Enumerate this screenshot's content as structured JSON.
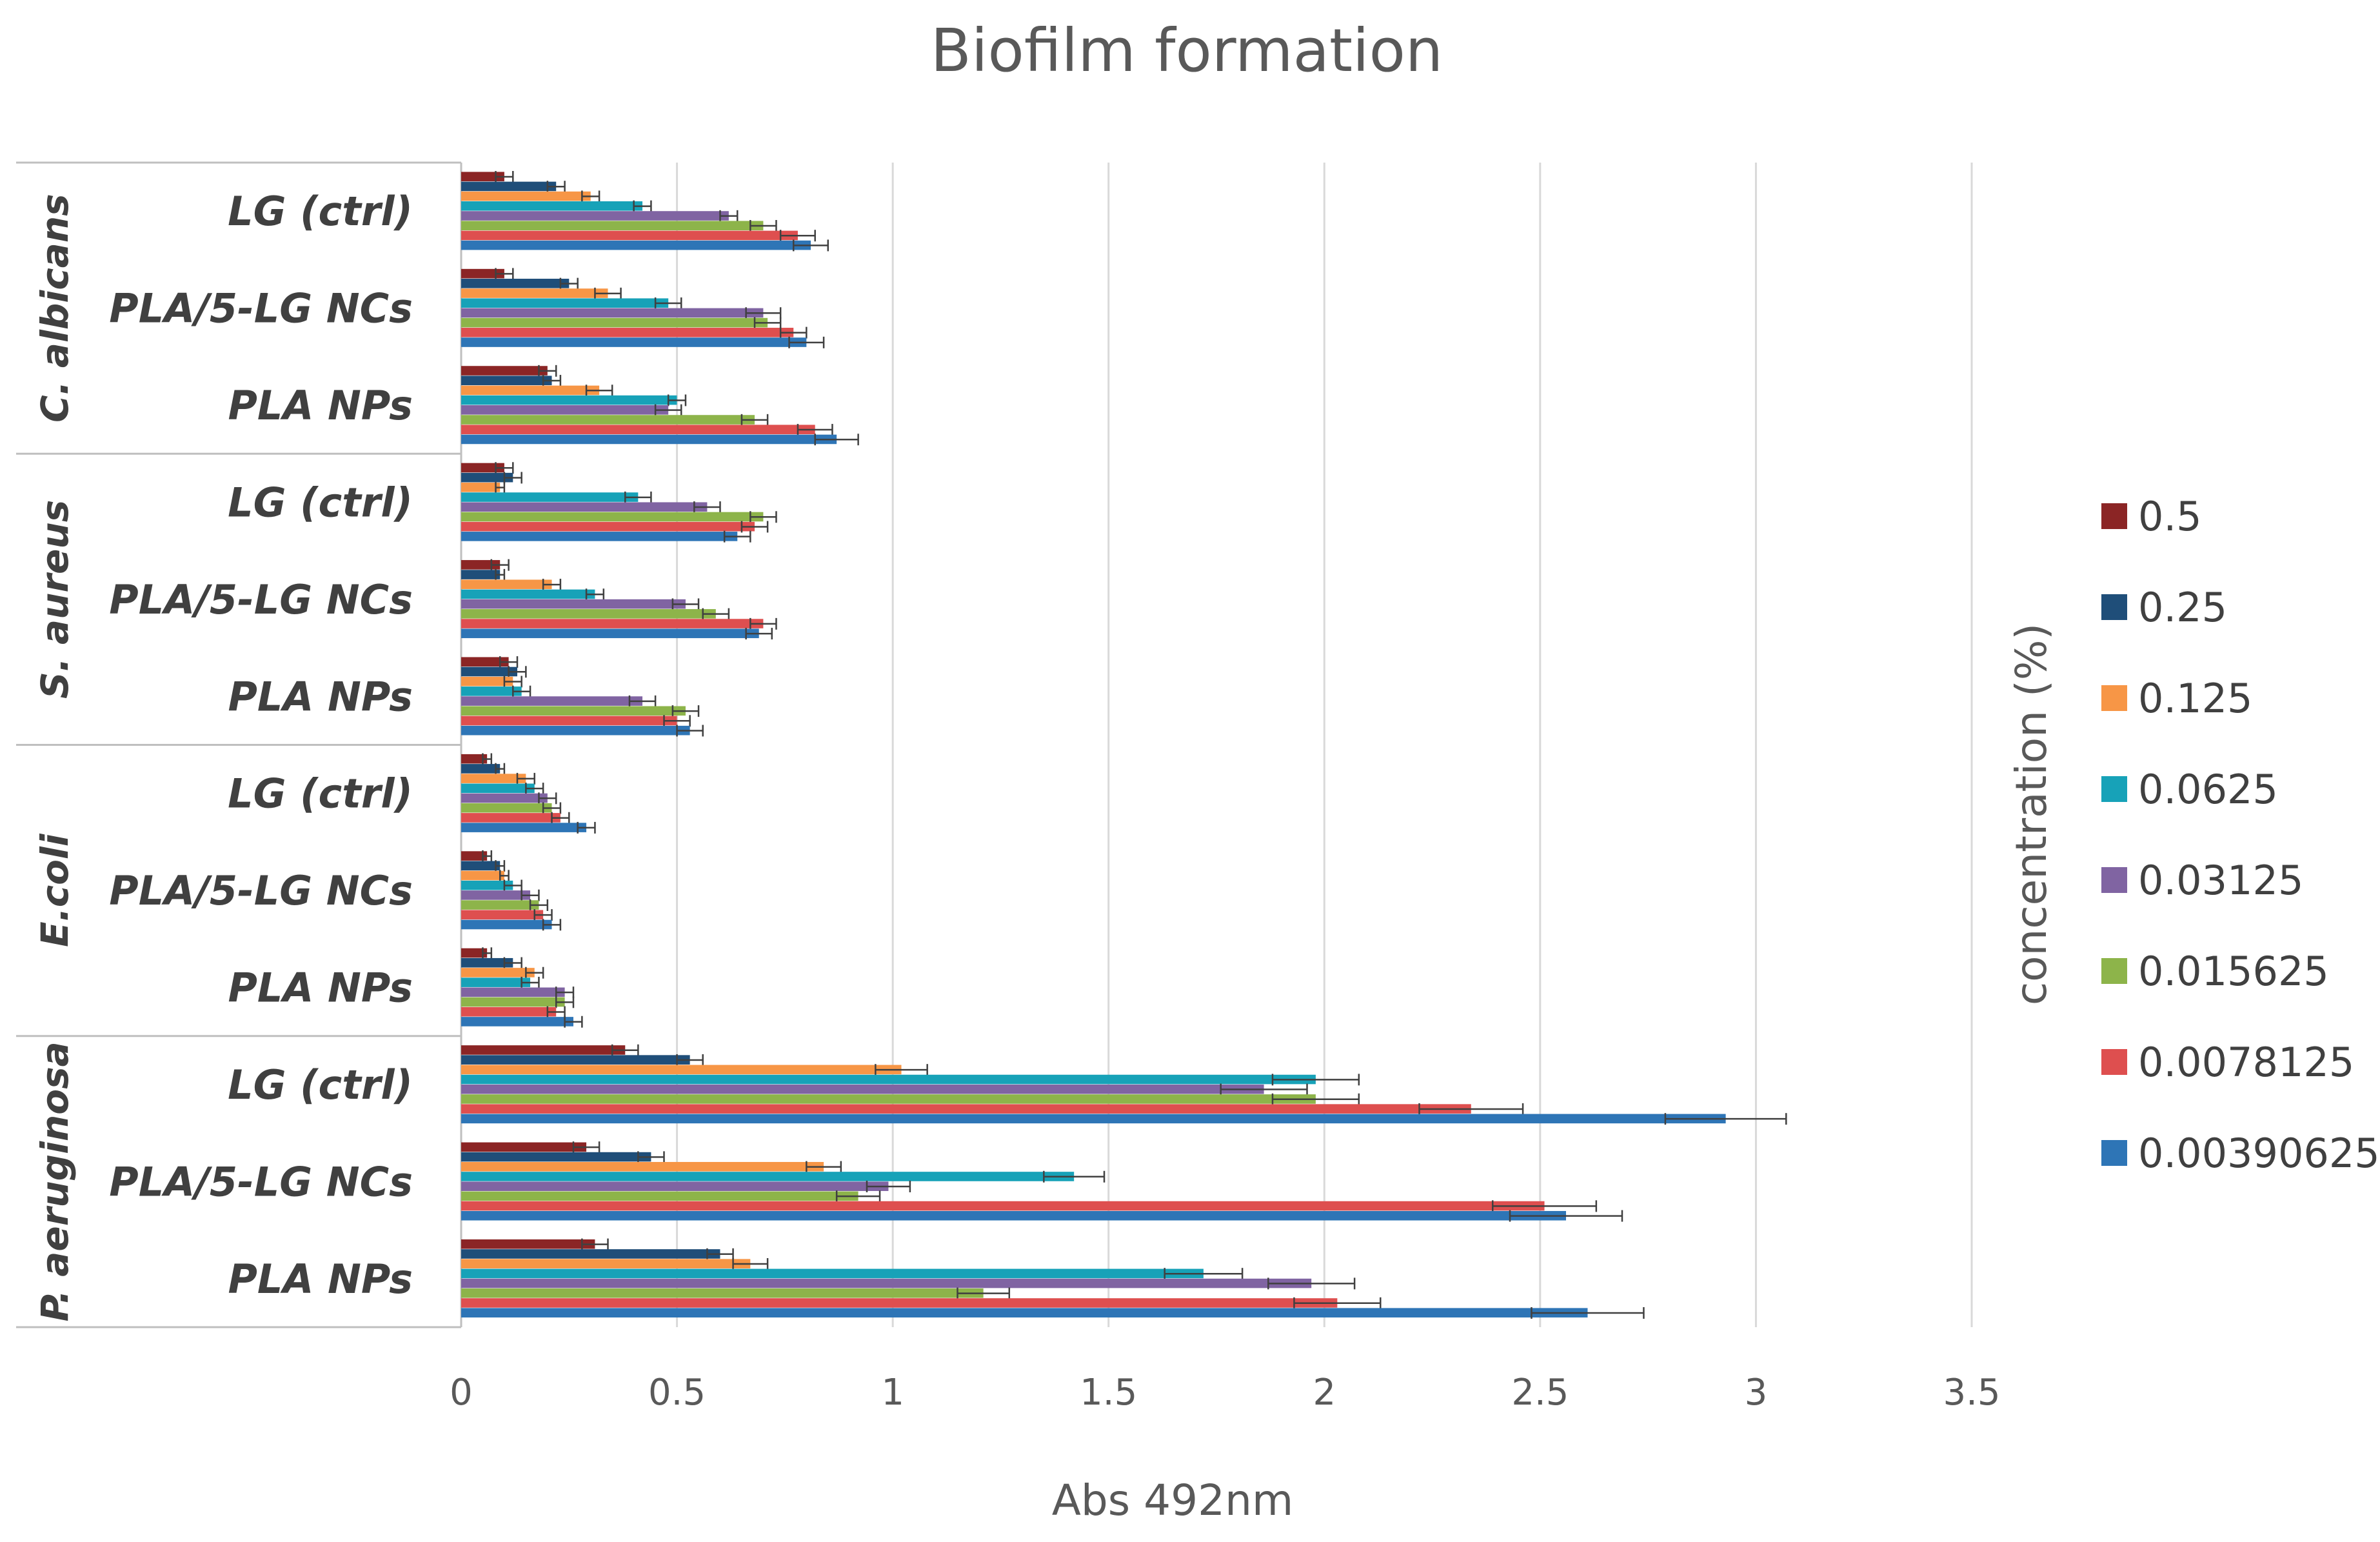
{
  "chart_data": {
    "type": "bar",
    "orientation": "horizontal",
    "title": "Biofilm formation",
    "xlabel": "Abs 492nm",
    "legend_title": "concentration (%)",
    "legend_position": "right",
    "xlim": [
      0,
      3.5
    ],
    "x_ticks": [
      "0",
      "0.5",
      "1",
      "1.5",
      "2",
      "2.5",
      "3",
      "3.5"
    ],
    "grid": true,
    "groups": [
      {
        "name": "C. albicans",
        "categories": [
          "LG (ctrl)",
          "PLA/5-LG NCs",
          "PLA NPs"
        ]
      },
      {
        "name": "S. aureus",
        "categories": [
          "LG (ctrl)",
          "PLA/5-LG NCs",
          "PLA NPs"
        ]
      },
      {
        "name": "E.coli",
        "categories": [
          "LG (ctrl)",
          "PLA/5-LG NCs",
          "PLA NPs"
        ]
      },
      {
        "name": "P. aeruginosa",
        "categories": [
          "LG (ctrl)",
          "PLA/5-LG NCs",
          "PLA NPs"
        ]
      }
    ],
    "series": [
      {
        "name": "0.5",
        "color": "#8B2525",
        "values": [
          0.1,
          0.1,
          0.2,
          0.1,
          0.09,
          0.11,
          0.06,
          0.06,
          0.06,
          0.38,
          0.29,
          0.31
        ],
        "errors": [
          0.02,
          0.02,
          0.02,
          0.02,
          0.02,
          0.02,
          0.01,
          0.01,
          0.01,
          0.03,
          0.03,
          0.03
        ]
      },
      {
        "name": "0.25",
        "color": "#1F4E79",
        "values": [
          0.22,
          0.25,
          0.21,
          0.12,
          0.09,
          0.13,
          0.09,
          0.09,
          0.12,
          0.53,
          0.44,
          0.6
        ],
        "errors": [
          0.02,
          0.02,
          0.02,
          0.02,
          0.01,
          0.02,
          0.01,
          0.01,
          0.02,
          0.03,
          0.03,
          0.03
        ]
      },
      {
        "name": "0.125",
        "color": "#F79646",
        "values": [
          0.3,
          0.34,
          0.32,
          0.09,
          0.21,
          0.12,
          0.15,
          0.1,
          0.17,
          1.02,
          0.84,
          0.67
        ],
        "errors": [
          0.02,
          0.03,
          0.03,
          0.01,
          0.02,
          0.02,
          0.02,
          0.01,
          0.02,
          0.06,
          0.04,
          0.04
        ]
      },
      {
        "name": "0.0625",
        "color": "#17A2B8",
        "values": [
          0.42,
          0.48,
          0.5,
          0.41,
          0.31,
          0.14,
          0.17,
          0.12,
          0.16,
          1.98,
          1.42,
          1.72
        ],
        "errors": [
          0.02,
          0.03,
          0.02,
          0.03,
          0.02,
          0.02,
          0.02,
          0.02,
          0.02,
          0.1,
          0.07,
          0.09
        ]
      },
      {
        "name": "0.03125",
        "color": "#8064A2",
        "values": [
          0.62,
          0.7,
          0.48,
          0.57,
          0.52,
          0.42,
          0.2,
          0.16,
          0.24,
          1.86,
          0.99,
          1.97
        ],
        "errors": [
          0.02,
          0.04,
          0.03,
          0.03,
          0.03,
          0.03,
          0.02,
          0.02,
          0.02,
          0.1,
          0.05,
          0.1
        ]
      },
      {
        "name": "0.015625",
        "color": "#8DB44A",
        "values": [
          0.7,
          0.71,
          0.68,
          0.7,
          0.59,
          0.52,
          0.21,
          0.18,
          0.24,
          1.98,
          0.92,
          1.21
        ],
        "errors": [
          0.03,
          0.03,
          0.03,
          0.03,
          0.03,
          0.03,
          0.02,
          0.02,
          0.02,
          0.1,
          0.05,
          0.06
        ]
      },
      {
        "name": "0.0078125",
        "color": "#DE4F4F",
        "values": [
          0.78,
          0.77,
          0.82,
          0.68,
          0.7,
          0.5,
          0.23,
          0.19,
          0.22,
          2.34,
          2.51,
          2.03
        ],
        "errors": [
          0.04,
          0.03,
          0.04,
          0.03,
          0.03,
          0.03,
          0.02,
          0.02,
          0.02,
          0.12,
          0.12,
          0.1
        ]
      },
      {
        "name": "0.00390625",
        "color": "#2E75B6",
        "values": [
          0.81,
          0.8,
          0.87,
          0.64,
          0.69,
          0.53,
          0.29,
          0.21,
          0.26,
          2.93,
          2.56,
          2.61
        ],
        "errors": [
          0.04,
          0.04,
          0.05,
          0.03,
          0.03,
          0.03,
          0.02,
          0.02,
          0.02,
          0.14,
          0.13,
          0.13
        ]
      }
    ]
  }
}
